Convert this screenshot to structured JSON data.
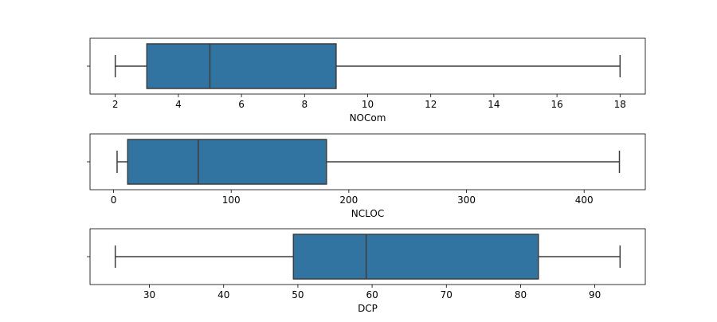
{
  "chart_data": [
    {
      "type": "box",
      "orientation": "horizontal",
      "xlabel": "NOCom",
      "xlim": [
        1.2,
        18.8
      ],
      "xticks": [
        2,
        4,
        6,
        8,
        10,
        12,
        14,
        16,
        18
      ],
      "whisker_low": 2,
      "q1": 3,
      "median": 5,
      "q3": 9,
      "whisker_high": 18,
      "box_color": "#3274a1",
      "line_color": "#3d3d3d"
    },
    {
      "type": "box",
      "orientation": "horizontal",
      "xlabel": "NCLOC",
      "xlim": [
        -20,
        452
      ],
      "xticks": [
        0,
        100,
        200,
        300,
        400
      ],
      "whisker_low": 3,
      "q1": 12,
      "median": 72,
      "q3": 181,
      "whisker_high": 430,
      "box_color": "#3274a1",
      "line_color": "#3d3d3d"
    },
    {
      "type": "box",
      "orientation": "horizontal",
      "xlabel": "DCP",
      "xlim": [
        22.0,
        96.8
      ],
      "xticks": [
        30,
        40,
        50,
        60,
        70,
        80,
        90
      ],
      "whisker_low": 25.4,
      "q1": 49.4,
      "median": 59.2,
      "q3": 82.4,
      "whisker_high": 93.4,
      "box_color": "#3274a1",
      "line_color": "#3d3d3d"
    }
  ]
}
